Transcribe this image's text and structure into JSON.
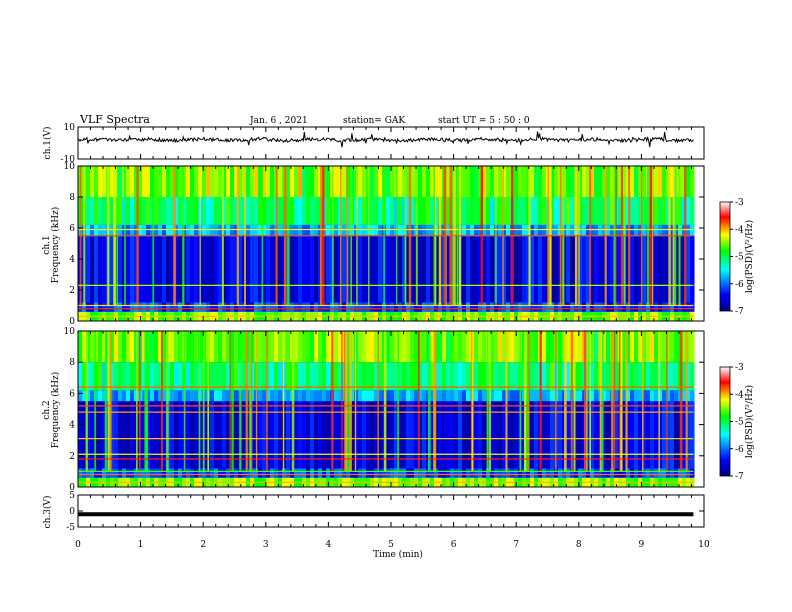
{
  "header": {
    "title": "VLF Spectra",
    "date": "Jan. 6 , 2021",
    "station": "station= GAK",
    "start": "start UT = 5 : 50 : 0"
  },
  "colorbar": {
    "label": "log(PSD)(V²/Hz)",
    "ticks": [
      "-3",
      "-4",
      "-5",
      "-6",
      "-7"
    ],
    "range": [
      -7,
      -3
    ],
    "colormap": [
      "#000080",
      "#0000ff",
      "#00ffff",
      "#00ff00",
      "#ffff00",
      "#ff0000",
      "#ffffff"
    ]
  },
  "chart_data": [
    {
      "type": "line",
      "name": "ch1-waveform",
      "ylabel": "ch.1(V)",
      "ylim": [
        -10,
        10
      ],
      "yticks": [
        "10",
        "-10"
      ],
      "xlim": [
        0,
        9.83
      ],
      "baseline_value": 2
    },
    {
      "type": "heatmap",
      "name": "ch1-spectrogram",
      "ylabel": "ch.1\nFrequency (kHz)",
      "ylim": [
        0,
        10
      ],
      "yticks": [
        "0",
        "2",
        "4",
        "6",
        "8",
        "10"
      ],
      "xlim": [
        0,
        9.83
      ],
      "zlim": [
        -7,
        -3
      ],
      "hlines_khz": [
        0.3,
        0.8,
        1.0,
        2.3,
        5.5,
        5.9
      ]
    },
    {
      "type": "heatmap",
      "name": "ch2-spectrogram",
      "ylabel": "ch.2\nFrequency (kHz)",
      "ylim": [
        0,
        10
      ],
      "yticks": [
        "0",
        "2",
        "4",
        "6",
        "8",
        "10"
      ],
      "xlim": [
        0,
        9.83
      ],
      "zlim": [
        -7,
        -3
      ],
      "hlines_khz": [
        0.3,
        0.8,
        1.0,
        1.8,
        2.1,
        3.1,
        4.8,
        5.2,
        6.4
      ]
    },
    {
      "type": "line",
      "name": "ch3-waveform",
      "ylabel": "ch.3(V)",
      "ylim": [
        -5,
        5
      ],
      "yticks": [
        "5",
        "0",
        "-5"
      ],
      "xlim": [
        0,
        9.83
      ],
      "baseline_value": -1
    }
  ],
  "xaxis": {
    "label": "Time (min)",
    "range": [
      0,
      10
    ],
    "ticks": [
      "0",
      "1",
      "2",
      "3",
      "4",
      "5",
      "6",
      "7",
      "8",
      "9",
      "10"
    ]
  }
}
